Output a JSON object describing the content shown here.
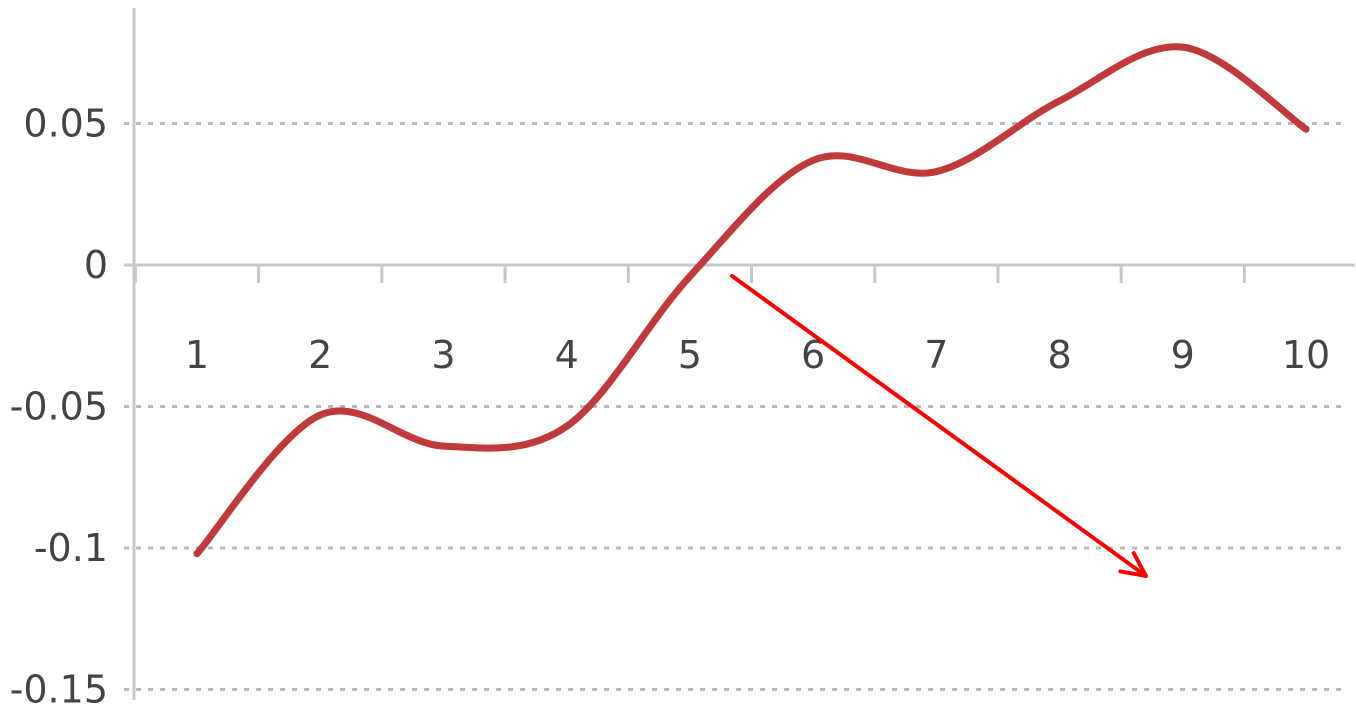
{
  "chart_data": {
    "type": "line",
    "title": "",
    "xlabel": "",
    "ylabel": "",
    "categories": [
      "1",
      "2",
      "3",
      "4",
      "5",
      "6",
      "7",
      "8",
      "9",
      "10"
    ],
    "series": [
      {
        "values": [
          -0.102,
          -0.053,
          -0.064,
          -0.057,
          -0.004,
          0.037,
          0.033,
          0.058,
          0.077,
          0.048
        ]
      }
    ],
    "ylim": [
      -0.15,
      0.1
    ],
    "y_ticks": [
      "0.05",
      "0",
      "-0.05",
      "-0.1",
      "-0.15"
    ],
    "y_tick_values": [
      0.05,
      0,
      -0.05,
      -0.1,
      -0.15
    ],
    "grid": "horizontal dashed",
    "legend": "none",
    "line_color": "#c0393b",
    "annotation_arrow_color": "#ff0000"
  }
}
